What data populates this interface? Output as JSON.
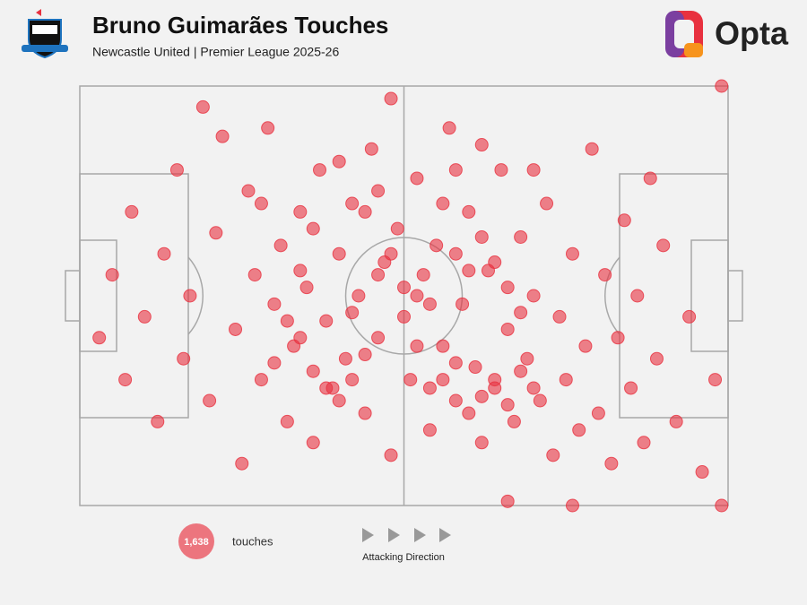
{
  "chart_data": {
    "type": "scatter",
    "title": "Bruno Guimarães Touches",
    "subtitle": "Newcastle United | Premier League 2025-26",
    "brand": "Opta",
    "xlim": [
      0,
      100
    ],
    "ylim": [
      0,
      100
    ],
    "series": [
      {
        "name": "touches",
        "color": "#e8313f",
        "x": [
          3,
          5,
          7,
          8,
          10,
          12,
          13,
          15,
          16,
          17,
          20,
          21,
          22,
          24,
          25,
          26,
          27,
          28,
          29,
          30,
          31,
          32,
          33,
          34,
          35,
          36,
          37,
          38,
          39,
          40,
          41,
          42,
          43,
          44,
          45,
          46,
          47,
          48,
          49,
          50,
          51,
          52,
          53,
          54,
          55,
          56,
          57,
          58,
          59,
          60,
          61,
          62,
          63,
          64,
          65,
          66,
          67,
          68,
          69,
          70,
          71,
          72,
          73,
          74,
          75,
          76,
          77,
          78,
          79,
          80,
          81,
          82,
          83,
          84,
          85,
          86,
          87,
          88,
          89,
          90,
          92,
          94,
          96,
          98,
          99,
          99,
          19,
          66,
          48,
          76,
          34,
          36,
          38,
          40,
          42,
          44,
          46,
          48,
          52,
          54,
          56,
          58,
          60,
          62,
          64,
          66,
          68,
          70,
          58,
          60,
          62,
          64,
          66,
          68,
          50,
          52,
          54,
          44,
          46,
          30,
          32,
          34,
          36,
          28,
          40,
          42,
          56,
          58,
          62,
          70
        ],
        "y": [
          40,
          55,
          30,
          70,
          45,
          20,
          60,
          80,
          35,
          50,
          25,
          65,
          88,
          42,
          10,
          75,
          55,
          30,
          90,
          48,
          62,
          20,
          38,
          70,
          52,
          15,
          80,
          44,
          28,
          60,
          35,
          72,
          50,
          22,
          85,
          40,
          58,
          12,
          66,
          45,
          30,
          78,
          55,
          18,
          62,
          38,
          90,
          25,
          48,
          70,
          33,
          15,
          56,
          28,
          80,
          42,
          20,
          64,
          35,
          50,
          25,
          72,
          12,
          45,
          30,
          60,
          18,
          38,
          85,
          22,
          55,
          10,
          40,
          68,
          28,
          50,
          15,
          78,
          35,
          62,
          20,
          45,
          8,
          30,
          100,
          0,
          95,
          1,
          97,
          0,
          40,
          32,
          28,
          25,
          30,
          36,
          55,
          60,
          38,
          28,
          30,
          34,
          22,
          26,
          30,
          24,
          32,
          28,
          60,
          56,
          64,
          58,
          52,
          46,
          52,
          50,
          48,
          70,
          75,
          34,
          44,
          56,
          66,
          72,
          82,
          46,
          72,
          80,
          86,
          80
        ]
      }
    ],
    "total": {
      "value": 1638,
      "label": "1,638"
    },
    "direction_label": "Attacking Direction"
  }
}
